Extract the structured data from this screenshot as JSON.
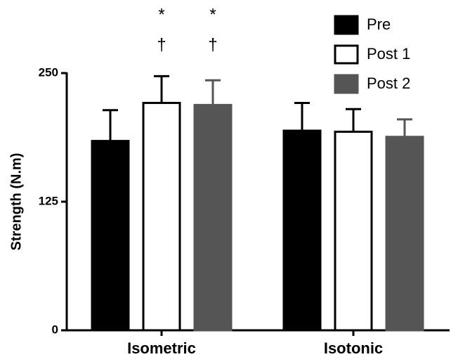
{
  "chart_data": {
    "type": "bar",
    "ylabel": "Strength (N.m)",
    "categories": [
      "Isometric",
      "Isotonic"
    ],
    "series": [
      {
        "name": "Pre",
        "color": "#000000",
        "edgecolor": "#000000",
        "values": [
          184,
          194
        ],
        "errors": [
          30,
          27
        ]
      },
      {
        "name": "Post 1",
        "color": "#ffffff",
        "edgecolor": "#000000",
        "values": [
          221,
          193
        ],
        "errors": [
          26,
          22
        ],
        "annotations": [
          [
            "*",
            "†"
          ],
          []
        ]
      },
      {
        "name": "Post 2",
        "color": "#555555",
        "edgecolor": "#555555",
        "values": [
          219,
          188
        ],
        "errors": [
          24,
          17
        ],
        "annotations": [
          [
            "*",
            "†"
          ],
          []
        ]
      }
    ],
    "ylim": [
      0,
      250
    ],
    "yticks": [
      0,
      125,
      250
    ],
    "legend": "top-right"
  }
}
